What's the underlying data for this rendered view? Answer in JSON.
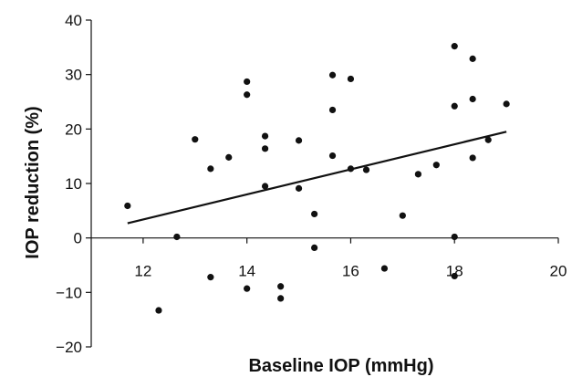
{
  "chart_data": {
    "type": "scatter",
    "xlabel": "Baseline IOP (mmHg)",
    "ylabel": "IOP reduction (%)",
    "xlim": [
      11,
      20
    ],
    "ylim": [
      -20,
      40
    ],
    "xticks": [
      12,
      14,
      16,
      18,
      20
    ],
    "yticks": [
      -20,
      -10,
      0,
      10,
      20,
      30,
      40
    ],
    "x_tick_labels": [
      "12",
      "14",
      "16",
      "18",
      "20"
    ],
    "y_tick_labels": [
      "−20",
      "−10",
      "0",
      "10",
      "20",
      "30",
      "40"
    ],
    "grid": false,
    "points": [
      {
        "x": 11.7,
        "y": 5.9
      },
      {
        "x": 12.3,
        "y": -13.3
      },
      {
        "x": 12.65,
        "y": 0.2
      },
      {
        "x": 13.0,
        "y": 18.1
      },
      {
        "x": 13.3,
        "y": 12.7
      },
      {
        "x": 13.3,
        "y": -7.2
      },
      {
        "x": 13.65,
        "y": 14.8
      },
      {
        "x": 14.0,
        "y": 28.7
      },
      {
        "x": 14.0,
        "y": 26.3
      },
      {
        "x": 14.0,
        "y": -9.3
      },
      {
        "x": 14.35,
        "y": 18.7
      },
      {
        "x": 14.35,
        "y": 16.4
      },
      {
        "x": 14.35,
        "y": 9.5
      },
      {
        "x": 14.65,
        "y": -8.9
      },
      {
        "x": 14.65,
        "y": -11.1
      },
      {
        "x": 15.0,
        "y": 17.9
      },
      {
        "x": 15.0,
        "y": 9.1
      },
      {
        "x": 15.3,
        "y": 4.4
      },
      {
        "x": 15.3,
        "y": -1.8
      },
      {
        "x": 15.65,
        "y": 29.9
      },
      {
        "x": 15.65,
        "y": 23.5
      },
      {
        "x": 15.65,
        "y": 15.1
      },
      {
        "x": 16.0,
        "y": 29.2
      },
      {
        "x": 16.0,
        "y": 12.7
      },
      {
        "x": 16.3,
        "y": 12.5
      },
      {
        "x": 16.65,
        "y": -5.6
      },
      {
        "x": 17.0,
        "y": 4.1
      },
      {
        "x": 17.3,
        "y": 11.7
      },
      {
        "x": 17.65,
        "y": 13.4
      },
      {
        "x": 18.0,
        "y": 35.2
      },
      {
        "x": 18.0,
        "y": 24.2
      },
      {
        "x": 18.0,
        "y": 0.2
      },
      {
        "x": 18.0,
        "y": -7.0
      },
      {
        "x": 18.35,
        "y": 32.9
      },
      {
        "x": 18.35,
        "y": 25.5
      },
      {
        "x": 18.35,
        "y": 14.7
      },
      {
        "x": 18.65,
        "y": 18.0
      },
      {
        "x": 19.0,
        "y": 24.6
      }
    ],
    "trendline": [
      {
        "x": 11.7,
        "y": 2.7
      },
      {
        "x": 19.0,
        "y": 19.5
      }
    ]
  }
}
